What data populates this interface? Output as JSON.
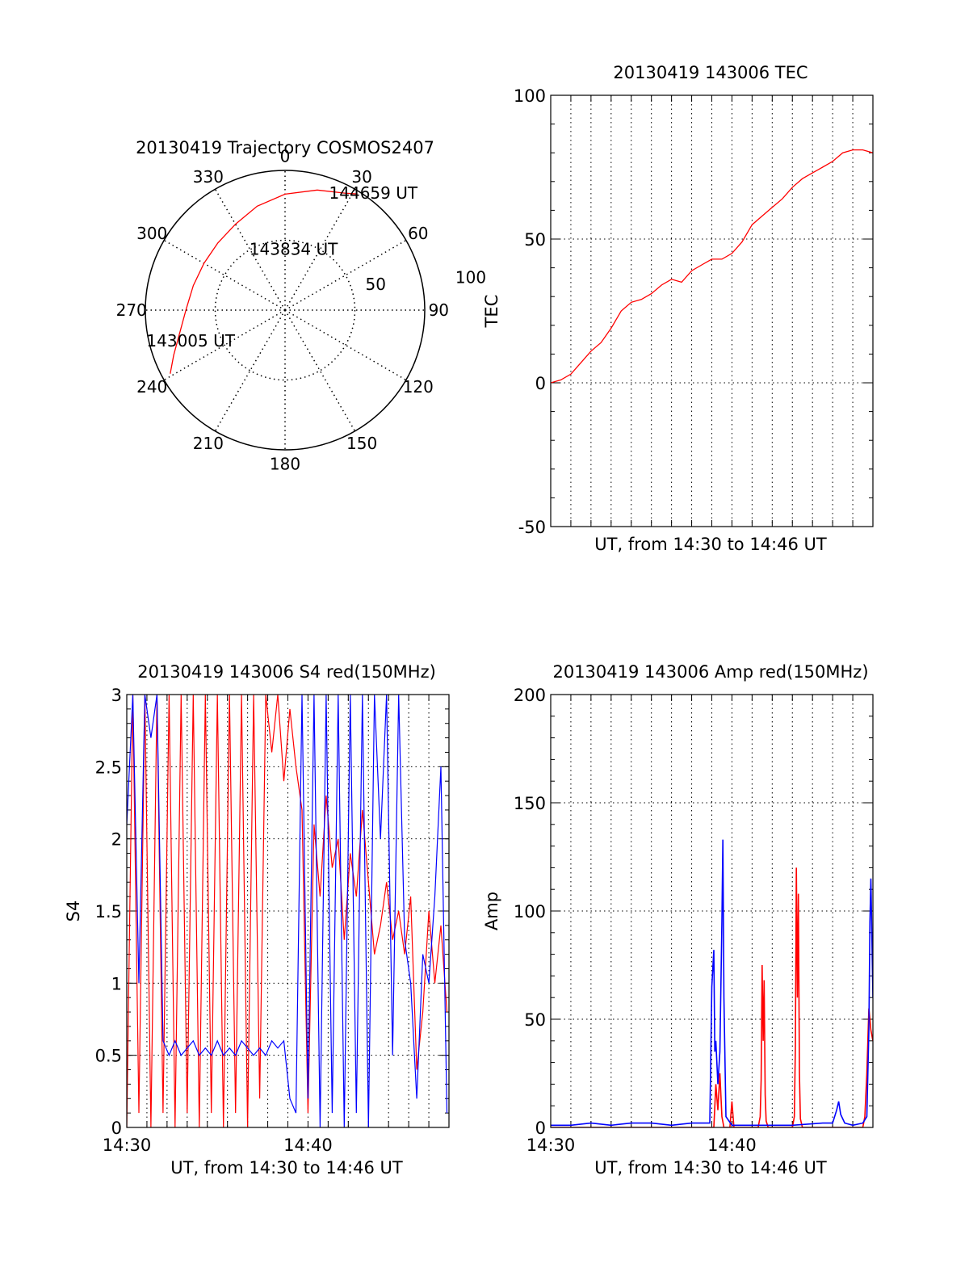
{
  "colors": {
    "red": "#ff0000",
    "blue": "#0000ff",
    "axis": "#000000",
    "grid": "#000000"
  },
  "chart_data": [
    {
      "type": "scatter",
      "projection": "polar",
      "title": "20130419 Trajectory COSMOS2407",
      "azimuth_labels": [
        "0",
        "30",
        "60",
        "90",
        "120",
        "150",
        "180",
        "210",
        "240",
        "270",
        "300",
        "330"
      ],
      "radius_labels": [
        "50",
        "100"
      ],
      "grid": true,
      "series": [
        {
          "color": "#ff0000",
          "points": [
            {
              "az": 241,
              "r": 94
            },
            {
              "az": 248,
              "r": 86
            },
            {
              "az": 258,
              "r": 77
            },
            {
              "az": 270,
              "r": 71
            },
            {
              "az": 285,
              "r": 68
            },
            {
              "az": 300,
              "r": 67
            },
            {
              "az": 315,
              "r": 68
            },
            {
              "az": 330,
              "r": 71
            },
            {
              "az": 345,
              "r": 77
            },
            {
              "az": 0,
              "r": 83
            },
            {
              "az": 15,
              "r": 89
            },
            {
              "az": 27,
              "r": 94
            },
            {
              "az": 32,
              "r": 98
            }
          ]
        }
      ],
      "annotations": [
        {
          "text": "144659 UT",
          "az": 37,
          "r": 105
        },
        {
          "text": "143834 UT",
          "az": 8,
          "r": 44
        },
        {
          "text": "143005 UT",
          "az": 252,
          "r": 71
        }
      ]
    },
    {
      "type": "line",
      "title": "20130419 143006 TEC",
      "xlabel": "UT, from 14:30 to 14:46 UT",
      "ylabel": "TEC",
      "xlim": [
        0,
        16
      ],
      "ylim": [
        -50,
        100
      ],
      "yticks": [
        -50,
        0,
        50,
        100
      ],
      "grid": true,
      "series": [
        {
          "color": "#ff0000",
          "x": [
            0,
            0.5,
            1.0,
            1.5,
            2.0,
            2.5,
            3.0,
            3.5,
            4.0,
            4.5,
            5.0,
            5.5,
            6.0,
            6.5,
            7.0,
            7.5,
            8.0,
            8.5,
            9.0,
            9.5,
            10.0,
            10.5,
            11.0,
            11.5,
            12.0,
            12.5,
            13.0,
            13.5,
            14.0,
            14.5,
            15.0,
            15.5,
            16.0
          ],
          "y": [
            0,
            1,
            3,
            7,
            11,
            14,
            19,
            25,
            28,
            29,
            31,
            34,
            36,
            35,
            39,
            41,
            43,
            43,
            45,
            49,
            55,
            58,
            61,
            64,
            68,
            71,
            73,
            75,
            77,
            80,
            81,
            81,
            80
          ]
        }
      ]
    },
    {
      "type": "line",
      "title": "20130419 143006 S4 red(150MHz)",
      "xlabel": "UT, from 14:30 to 14:46 UT",
      "ylabel": "S4",
      "xlim": [
        0,
        16
      ],
      "ylim": [
        0,
        3
      ],
      "xticks": [
        {
          "v": 0,
          "label": "14:30"
        },
        {
          "v": 9,
          "label": "14:40"
        }
      ],
      "yticks": [
        {
          "v": 0,
          "label": "0"
        },
        {
          "v": 0.5,
          "label": "0.5"
        },
        {
          "v": 1,
          "label": "1"
        },
        {
          "v": 1.5,
          "label": "1.5"
        },
        {
          "v": 2,
          "label": "2"
        },
        {
          "v": 2.5,
          "label": "2.5"
        },
        {
          "v": 3,
          "label": "3"
        }
      ],
      "grid": true,
      "series": [
        {
          "color": "#ff0000",
          "x": [
            0.0,
            0.3,
            0.6,
            0.9,
            1.2,
            1.5,
            1.8,
            2.1,
            2.4,
            2.7,
            3.0,
            3.3,
            3.6,
            3.9,
            4.2,
            4.5,
            4.8,
            5.1,
            5.4,
            5.7,
            6.0,
            6.3,
            6.6,
            6.9,
            7.2,
            7.5,
            7.8,
            8.1,
            8.4,
            8.7,
            9.0,
            9.3,
            9.6,
            9.9,
            10.2,
            10.5,
            10.8,
            11.1,
            11.4,
            11.7,
            12.0,
            12.3,
            12.6,
            12.9,
            13.2,
            13.5,
            13.8,
            14.1,
            14.4,
            14.7,
            15.0,
            15.3,
            15.6,
            15.9
          ],
          "y": [
            0.0,
            3.0,
            0.1,
            3.0,
            0.0,
            3.0,
            0.1,
            3.0,
            0.0,
            3.0,
            0.1,
            3.0,
            0.0,
            3.0,
            0.1,
            3.0,
            0.0,
            3.0,
            0.1,
            3.0,
            0.0,
            3.0,
            0.2,
            3.0,
            2.6,
            3.0,
            2.4,
            2.9,
            2.5,
            2.2,
            0.1,
            2.1,
            1.6,
            2.3,
            1.8,
            2.0,
            1.3,
            1.9,
            1.6,
            2.2,
            1.7,
            1.2,
            1.4,
            1.7,
            1.3,
            1.5,
            1.2,
            1.6,
            0.4,
            0.8,
            1.5,
            1.0,
            1.4,
            0.8
          ]
        },
        {
          "color": "#0000ff",
          "x": [
            0.0,
            0.3,
            0.6,
            0.9,
            1.2,
            1.5,
            1.8,
            2.1,
            2.4,
            2.7,
            3.0,
            3.3,
            3.6,
            3.9,
            4.2,
            4.5,
            4.8,
            5.1,
            5.4,
            5.7,
            6.0,
            6.3,
            6.6,
            6.9,
            7.2,
            7.5,
            7.8,
            8.1,
            8.4,
            8.7,
            9.0,
            9.3,
            9.6,
            9.9,
            10.2,
            10.5,
            10.8,
            11.1,
            11.4,
            11.7,
            12.0,
            12.3,
            12.6,
            12.9,
            13.2,
            13.5,
            13.8,
            14.1,
            14.4,
            14.7,
            15.0,
            15.3,
            15.6,
            15.9
          ],
          "y": [
            2.1,
            3.0,
            1.0,
            3.0,
            2.7,
            3.0,
            0.6,
            0.5,
            0.6,
            0.5,
            0.55,
            0.6,
            0.5,
            0.55,
            0.5,
            0.6,
            0.5,
            0.55,
            0.5,
            0.6,
            0.55,
            0.5,
            0.55,
            0.5,
            0.6,
            0.55,
            0.6,
            0.2,
            0.1,
            3.0,
            0.2,
            3.0,
            0.0,
            3.0,
            0.1,
            3.0,
            0.0,
            3.0,
            0.1,
            3.0,
            0.0,
            3.0,
            2.0,
            3.0,
            0.5,
            3.0,
            1.3,
            1.0,
            0.2,
            1.2,
            1.0,
            1.6,
            2.5,
            0.1
          ]
        }
      ]
    },
    {
      "type": "line",
      "title": "20130419 143006 Amp red(150MHz)",
      "xlabel": "UT, from 14:30 to 14:46 UT",
      "ylabel": "Amp",
      "xlim": [
        0,
        16
      ],
      "ylim": [
        0,
        200
      ],
      "xticks": [
        {
          "v": 0,
          "label": "14:30"
        },
        {
          "v": 9,
          "label": "14:40"
        }
      ],
      "yticks": [
        {
          "v": 0,
          "label": "0"
        },
        {
          "v": 50,
          "label": "50"
        },
        {
          "v": 100,
          "label": "100"
        },
        {
          "v": 150,
          "label": "150"
        },
        {
          "v": 200,
          "label": "200"
        }
      ],
      "grid": true,
      "series": [
        {
          "color": "#ff0000",
          "x": [
            0,
            8.1,
            8.2,
            8.3,
            8.4,
            8.5,
            8.6,
            8.9,
            9.0,
            9.1,
            10.3,
            10.4,
            10.45,
            10.5,
            10.55,
            10.6,
            10.65,
            10.7,
            10.8,
            12.0,
            12.1,
            12.15,
            12.2,
            12.25,
            12.3,
            12.35,
            12.4,
            12.5,
            15.5,
            15.6,
            15.7,
            15.8,
            15.9,
            16.0
          ],
          "y": [
            0,
            0,
            20,
            8,
            25,
            5,
            0,
            0,
            12,
            0,
            0,
            5,
            22,
            75,
            40,
            68,
            15,
            3,
            0,
            0,
            5,
            38,
            120,
            60,
            108,
            25,
            4,
            0,
            0,
            5,
            25,
            55,
            45,
            40
          ]
        },
        {
          "color": "#0000ff",
          "x": [
            0,
            1.0,
            2.0,
            3.0,
            4.0,
            5.0,
            6.0,
            7.0,
            7.6,
            7.9,
            8.0,
            8.1,
            8.15,
            8.2,
            8.3,
            8.4,
            8.5,
            8.55,
            8.6,
            8.7,
            9.0,
            12.0,
            13.5,
            14.0,
            14.2,
            14.3,
            14.4,
            14.6,
            15.0,
            15.5,
            15.7,
            15.8,
            15.85,
            15.9,
            16.0
          ],
          "y": [
            1,
            1,
            2,
            1,
            2,
            2,
            1,
            2,
            2,
            2,
            65,
            82,
            35,
            40,
            20,
            35,
            95,
            133,
            60,
            5,
            1,
            1,
            2,
            2,
            8,
            12,
            6,
            2,
            1,
            2,
            5,
            45,
            95,
            115,
            60
          ]
        }
      ]
    }
  ]
}
